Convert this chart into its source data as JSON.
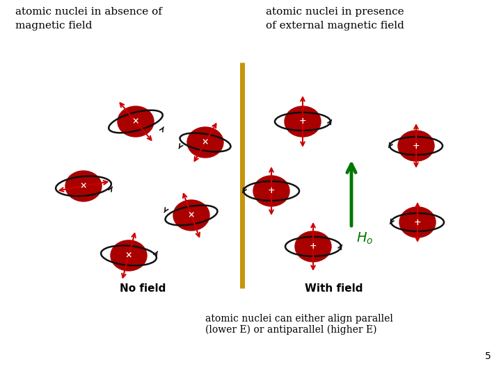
{
  "bg_color": "#ffffff",
  "title_left": "atomic nuclei in absence of\nmagnetic field",
  "title_right": "atomic nuclei in presence\nof external magnetic field",
  "bottom_text_1": "atomic nuclei can either align parallel",
  "bottom_text_2": "(lower E) or antiparallel (higher E)",
  "page_num": "5",
  "divider_color": "#C8940A",
  "nucleus_color": "#AA0000",
  "orbit_color": "#111111",
  "spin_arrow_color": "#CC0000",
  "field_arrow_color": "#007700",
  "no_field_label": "No field",
  "with_field_label": "With field",
  "ho_label": "H",
  "ho_sub": "o",
  "ho_color": "#007700"
}
